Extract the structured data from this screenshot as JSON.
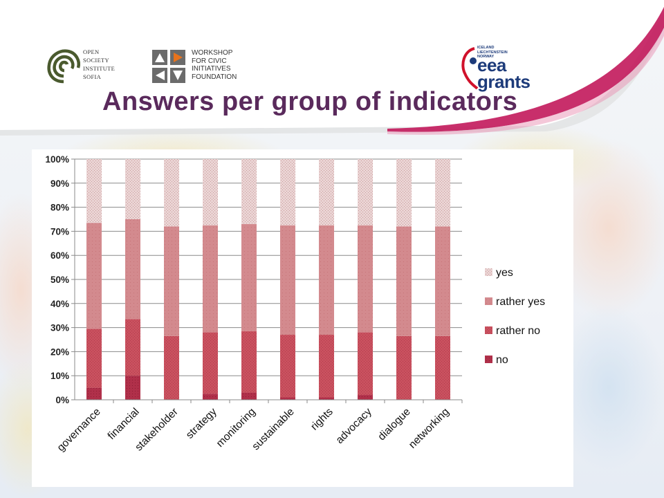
{
  "logos": {
    "osi": {
      "lines": [
        "OPEN",
        "SOCIETY",
        "INSTITUTE",
        "SOFIA"
      ]
    },
    "wcif": {
      "lines": [
        "WORKSHOP",
        "FOR CIVIC",
        "INITIATIVES",
        "FOUNDATION"
      ]
    },
    "eea": {
      "small_lines": [
        "ICELAND",
        "LIECHTENSTEIN",
        "NORWAY"
      ],
      "word_lines": [
        "eea",
        "grants"
      ]
    }
  },
  "title": "Answers per group of indicators",
  "chart_data": {
    "type": "bar",
    "stacked": true,
    "percent": true,
    "categories": [
      "governance",
      "financial",
      "stakeholder",
      "strategy",
      "monitoring",
      "sustainable",
      "rights",
      "advocacy",
      "dialogue",
      "networking"
    ],
    "series": [
      {
        "name": "no",
        "values": [
          5,
          10,
          0,
          2.5,
          3,
          1,
          1,
          2,
          0,
          0
        ]
      },
      {
        "name": "rather no",
        "values": [
          24.5,
          23.5,
          26.5,
          25.5,
          25.5,
          26,
          26,
          26,
          26.5,
          26.5
        ]
      },
      {
        "name": "rather yes",
        "values": [
          44,
          41.5,
          45.5,
          44.5,
          44.5,
          45.5,
          45.5,
          44.5,
          45.5,
          45.5
        ]
      },
      {
        "name": "yes",
        "values": [
          26.5,
          25,
          28,
          27.5,
          27,
          27.5,
          27.5,
          27.5,
          28,
          28
        ]
      }
    ],
    "y_ticks": [
      "0%",
      "10%",
      "20%",
      "30%",
      "40%",
      "50%",
      "60%",
      "70%",
      "80%",
      "90%",
      "100%"
    ],
    "ylim": [
      0,
      100
    ],
    "grid": true,
    "legend_position": "right",
    "legend_order": [
      "yes",
      "rather yes",
      "rather no",
      "no"
    ],
    "colors": {
      "no": "#b0304a",
      "rather no": "#c9515f",
      "rather yes": "#d38a8e",
      "yes": "#e2c0c0"
    }
  }
}
